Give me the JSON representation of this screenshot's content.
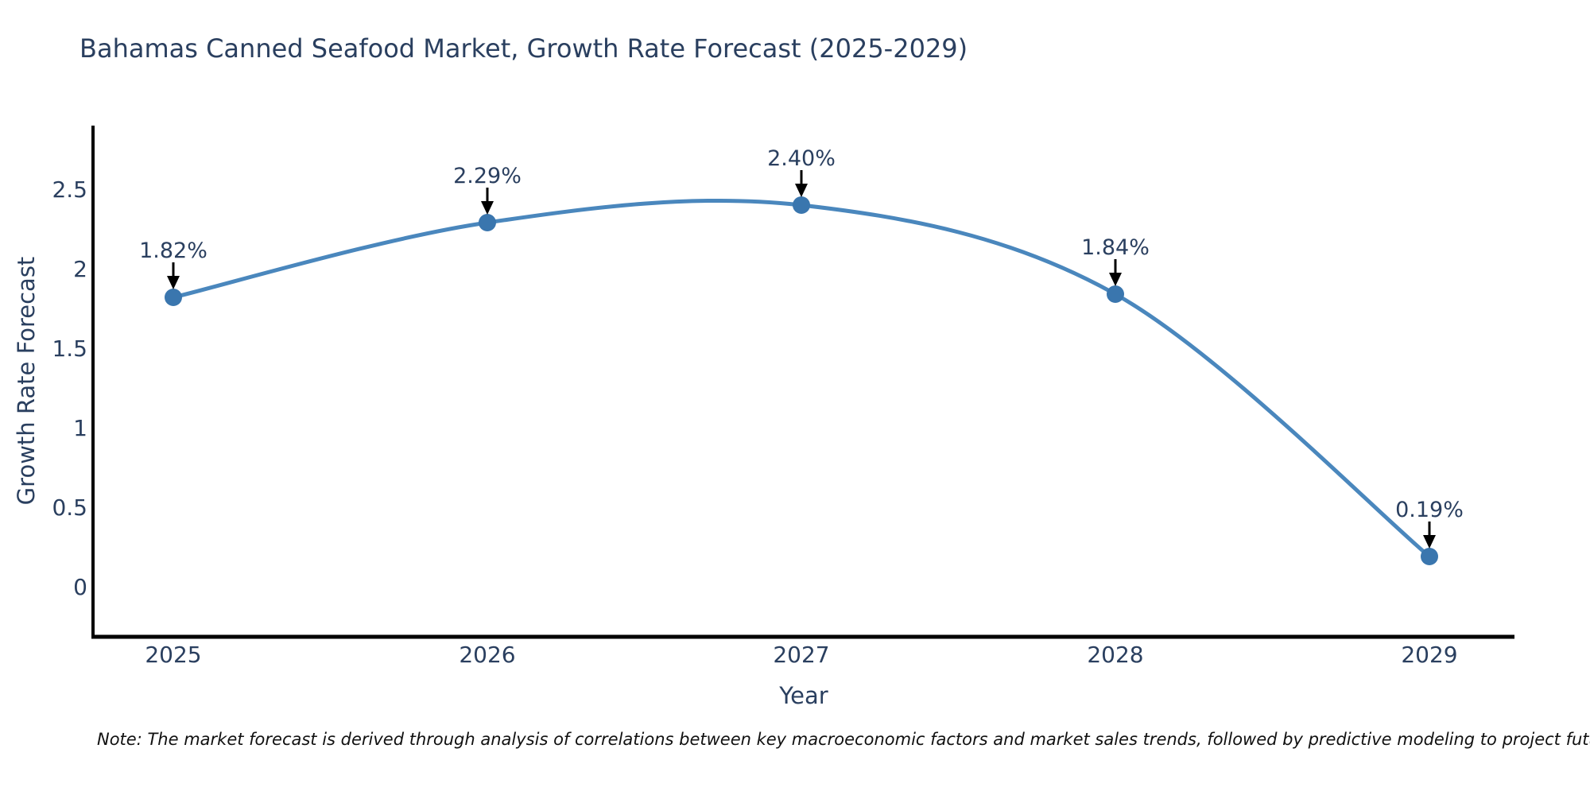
{
  "title": "Bahamas Canned Seafood Market, Growth Rate Forecast (2025-2029)",
  "note": "Note: The market forecast is derived through analysis of correlations between key macroeconomic factors and market sales trends, followed by predictive modeling to project future sales",
  "chart_data": {
    "type": "line",
    "line_shape": "spline",
    "title": "Bahamas Canned Seafood Market, Growth Rate Forecast (2025-2029)",
    "xlabel": "Year",
    "ylabel": "Growth Rate Forecast",
    "categories": [
      "2025",
      "2026",
      "2027",
      "2028",
      "2029"
    ],
    "x": [
      2025,
      2026,
      2027,
      2028,
      2029
    ],
    "values": [
      1.82,
      2.29,
      2.4,
      1.84,
      0.19
    ],
    "labels": [
      "1.82%",
      "2.29%",
      "2.40%",
      "1.84%",
      "0.19%"
    ],
    "yticks": [
      0,
      0.5,
      1,
      1.5,
      2,
      2.5
    ],
    "ytick_labels": [
      "0",
      "0.5",
      "1",
      "1.5",
      "2",
      "2.5"
    ],
    "ylim": [
      -0.32,
      2.9
    ],
    "grid": false,
    "legend": null,
    "annotations_style": "value label above point with downward black arrow",
    "colors": {
      "line": "#4a87bd",
      "marker": "#3a76ae",
      "axis": "#000000",
      "text": "#2a3f5f",
      "arrow": "#000000",
      "note_text": "#111111",
      "background": "#ffffff"
    }
  }
}
